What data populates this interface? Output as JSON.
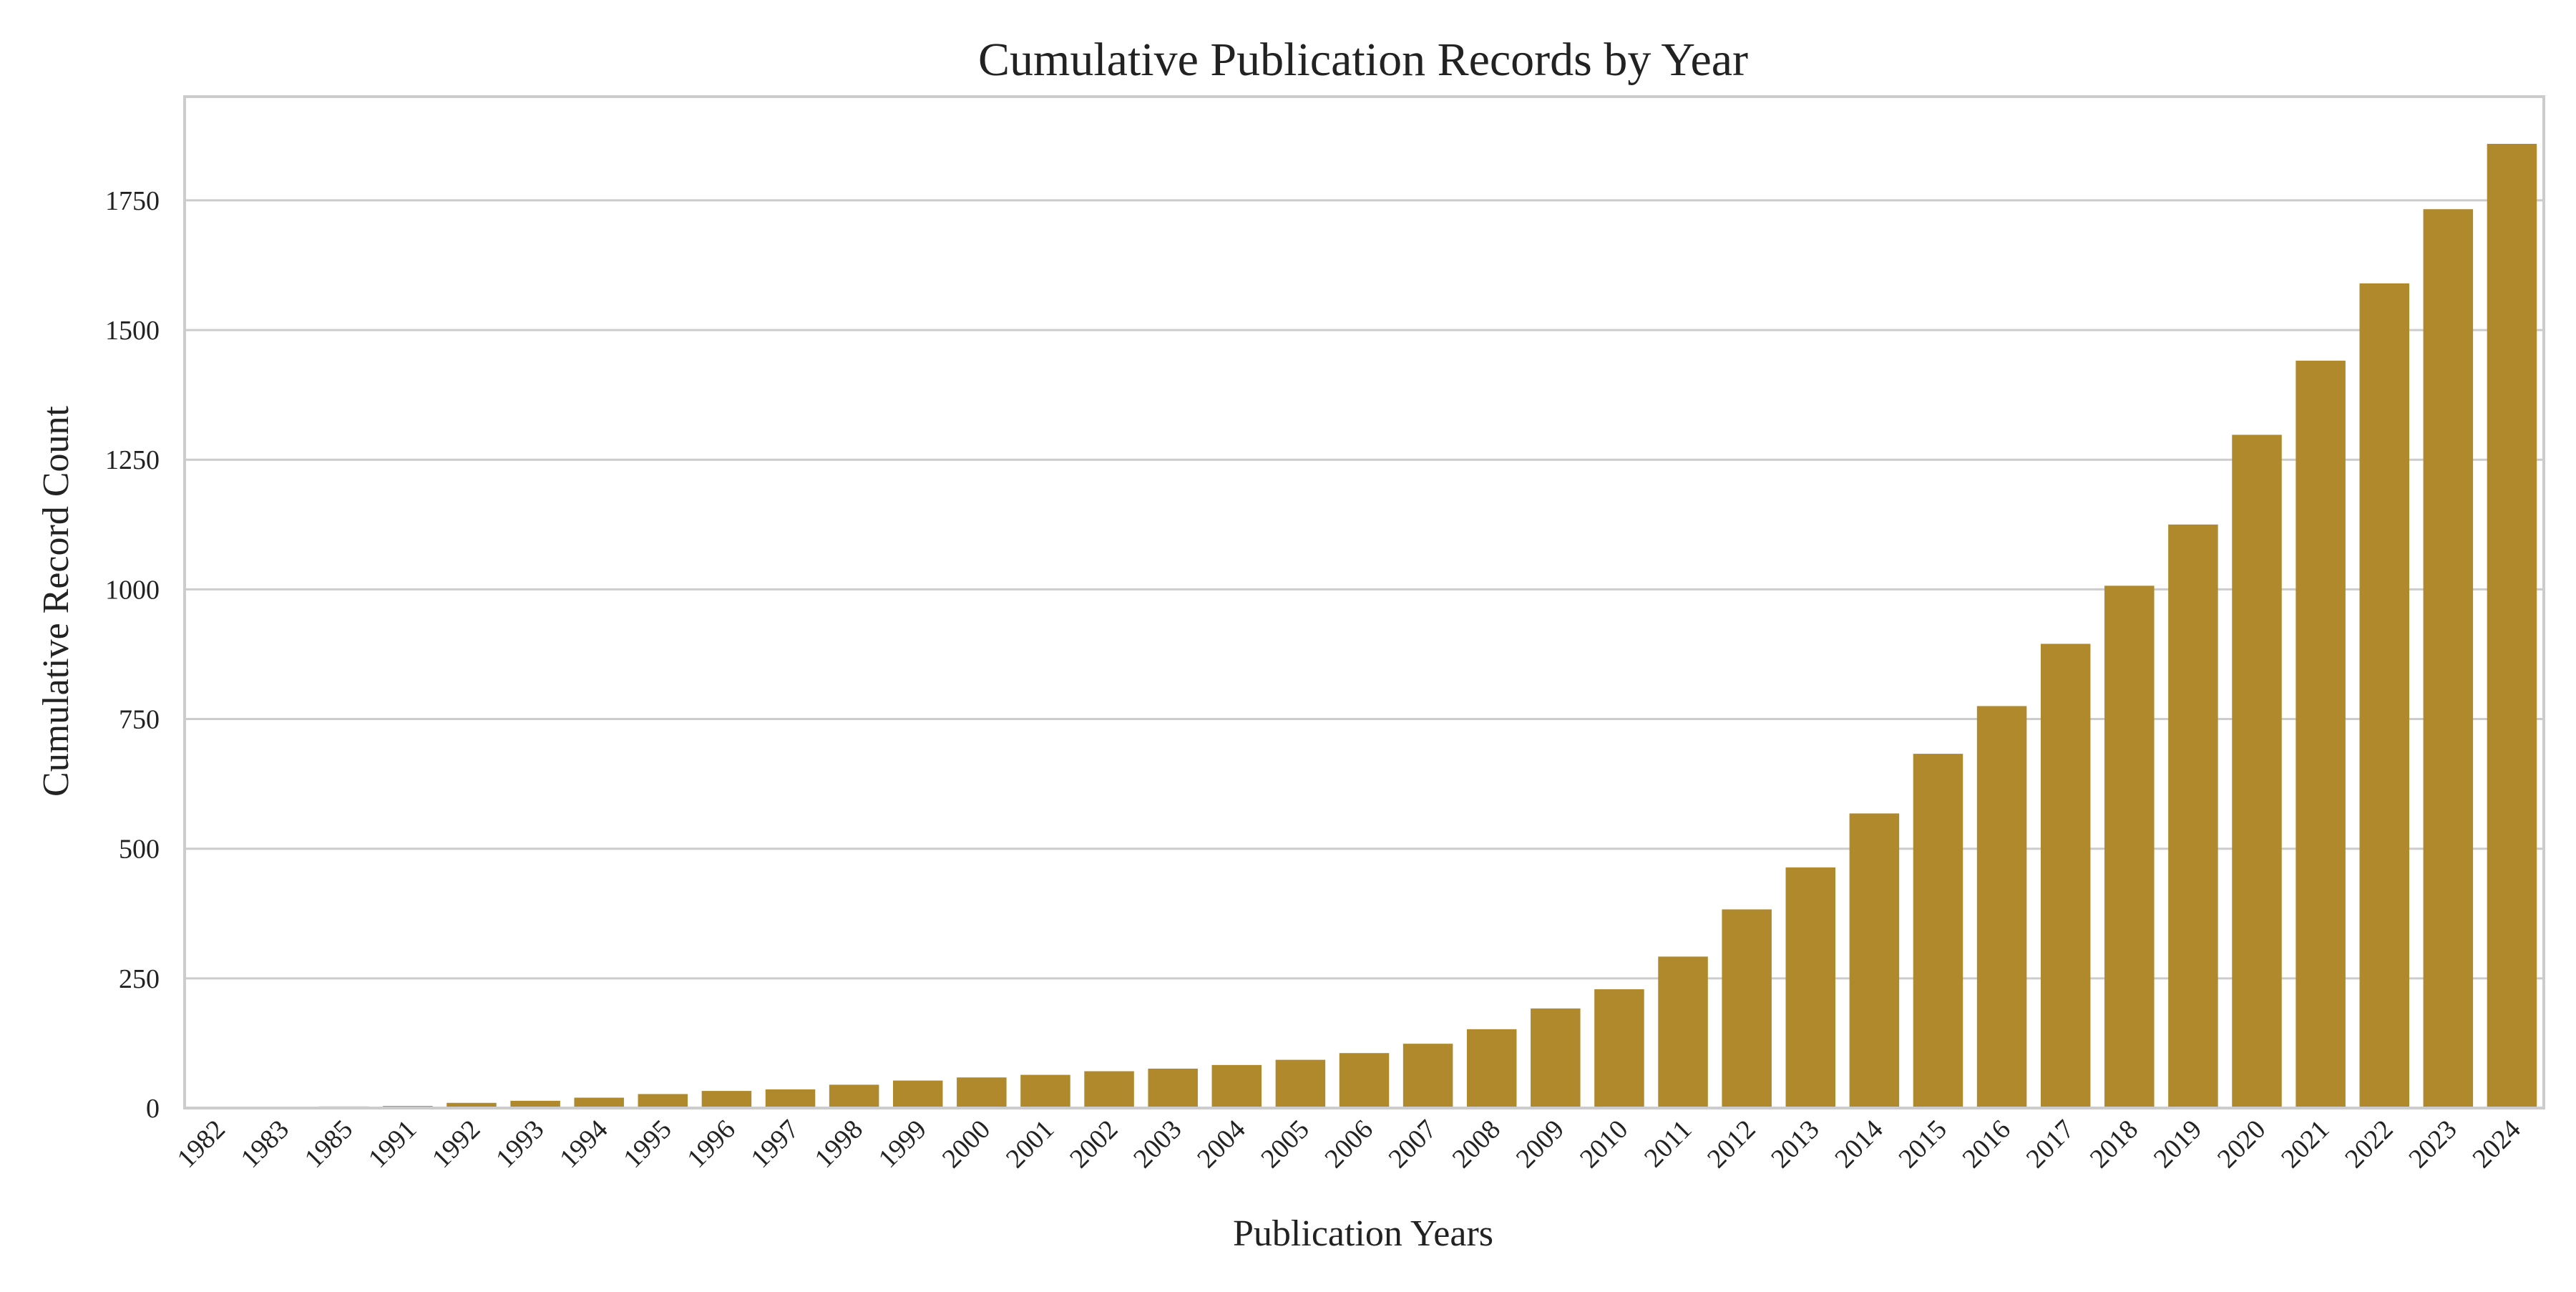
{
  "chart_data": {
    "type": "bar",
    "title": "Cumulative Publication Records by Year",
    "xlabel": "Publication Years",
    "ylabel": "Cumulative Record Count",
    "ylim": [
      0,
      1950
    ],
    "yticks": [
      0,
      250,
      500,
      750,
      1000,
      1250,
      1500,
      1750
    ],
    "grid": true,
    "legend": "none",
    "bar_color": "#B0892C",
    "categories": [
      "1982",
      "1983",
      "1985",
      "1991",
      "1992",
      "1993",
      "1994",
      "1995",
      "1996",
      "1997",
      "1998",
      "1999",
      "2000",
      "2001",
      "2002",
      "2003",
      "2004",
      "2005",
      "2006",
      "2007",
      "2008",
      "2009",
      "2010",
      "2011",
      "2012",
      "2013",
      "2014",
      "2015",
      "2016",
      "2017",
      "2018",
      "2019",
      "2020",
      "2021",
      "2022",
      "2023",
      "2024"
    ],
    "values": [
      1,
      2,
      3,
      4,
      10,
      14,
      20,
      27,
      33,
      36,
      45,
      53,
      59,
      64,
      71,
      76,
      83,
      93,
      106,
      124,
      152,
      192,
      229,
      292,
      383,
      464,
      568,
      683,
      775,
      895,
      1007,
      1125,
      1298,
      1441,
      1590,
      1733,
      1859
    ]
  }
}
